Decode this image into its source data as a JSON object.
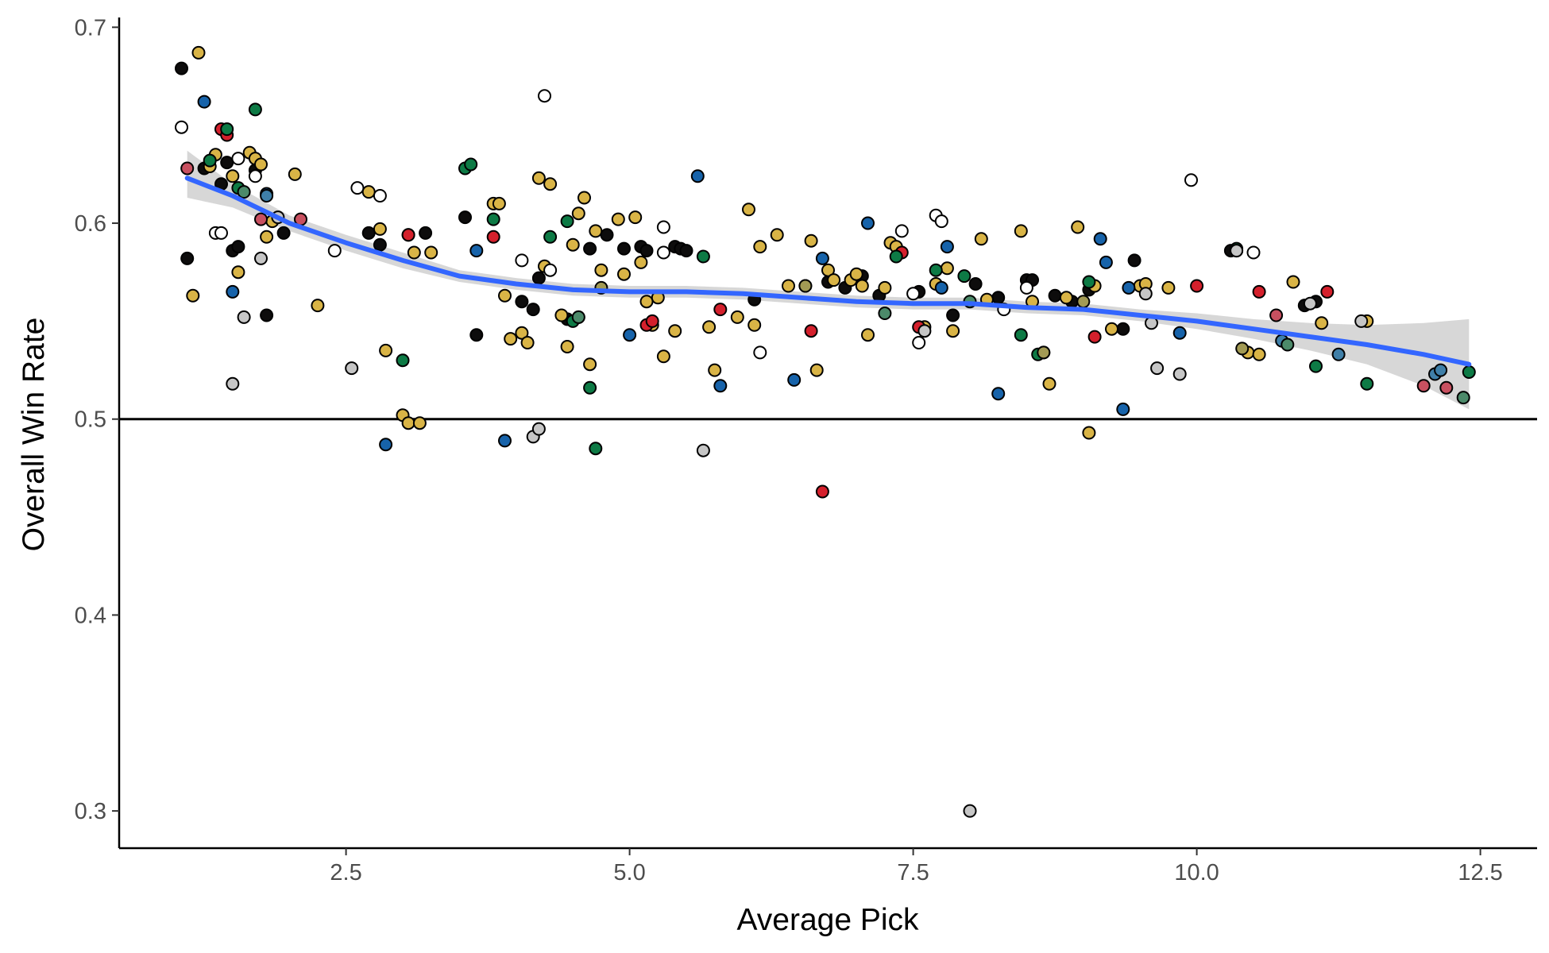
{
  "chart_data": {
    "type": "scatter",
    "title": "",
    "xlabel": "Average Pick",
    "ylabel": "Overall Win Rate",
    "xlim": [
      0.5,
      13.0
    ],
    "ylim": [
      0.281,
      0.705
    ],
    "x_ticks": [
      2.5,
      5.0,
      7.5,
      10.0,
      12.5
    ],
    "x_tick_labels": [
      "2.5",
      "5.0",
      "7.5",
      "10.0",
      "12.5"
    ],
    "y_ticks": [
      0.3,
      0.4,
      0.5,
      0.6,
      0.7
    ],
    "y_tick_labels": [
      "0.3",
      "0.4",
      "0.5",
      "0.6",
      "0.7"
    ],
    "grid": false,
    "legend": "none",
    "reference_line": {
      "y": 0.5,
      "color": "#000000"
    },
    "colors": {
      "smooth": "#3366FF",
      "band": "#C9C9C9",
      "point_outline": "#000000",
      "palette": {
        "black": "#0d0c0c",
        "gold": "#d9b446",
        "red": "#d4202c",
        "green": "#0d7a45",
        "blue": "#1763aa",
        "white": "#ffffff",
        "gray": "#c6c6c6",
        "rose": "#c85060",
        "steel": "#3f7fa8",
        "sage": "#4c8a6a",
        "olive": "#a29a54"
      }
    },
    "smooth_line": {
      "x": [
        1.1,
        1.5,
        2.0,
        2.5,
        3.0,
        3.5,
        4.0,
        4.5,
        5.0,
        5.5,
        6.0,
        6.5,
        7.0,
        7.5,
        8.0,
        8.5,
        9.0,
        9.5,
        10.0,
        10.5,
        11.0,
        11.5,
        12.0,
        12.4
      ],
      "y": [
        0.623,
        0.614,
        0.6,
        0.59,
        0.581,
        0.573,
        0.569,
        0.566,
        0.565,
        0.565,
        0.564,
        0.562,
        0.56,
        0.559,
        0.559,
        0.557,
        0.556,
        0.553,
        0.55,
        0.546,
        0.542,
        0.538,
        0.533,
        0.528
      ],
      "lower": [
        0.613,
        0.608,
        0.596,
        0.586,
        0.577,
        0.57,
        0.566,
        0.563,
        0.562,
        0.562,
        0.561,
        0.559,
        0.557,
        0.556,
        0.556,
        0.554,
        0.553,
        0.55,
        0.546,
        0.541,
        0.535,
        0.528,
        0.517,
        0.505
      ],
      "upper": [
        0.637,
        0.62,
        0.604,
        0.594,
        0.585,
        0.576,
        0.572,
        0.569,
        0.568,
        0.568,
        0.567,
        0.565,
        0.563,
        0.562,
        0.562,
        0.56,
        0.559,
        0.556,
        0.554,
        0.551,
        0.549,
        0.548,
        0.549,
        0.551
      ]
    },
    "series": [
      {
        "x": [
          1.05,
          1.1,
          1.25,
          1.4,
          1.45,
          1.5,
          1.55,
          1.7,
          1.8,
          1.95,
          2.7,
          2.8,
          3.05,
          3.2,
          3.55,
          3.65,
          4.05,
          4.15,
          4.2,
          4.45,
          4.55,
          4.65,
          4.8,
          4.95,
          5.1,
          5.15,
          5.4,
          5.45,
          5.5,
          6.1,
          6.55,
          6.75,
          6.9,
          7.05,
          7.2,
          7.55,
          7.85,
          8.05,
          8.25,
          8.5,
          8.55,
          8.75,
          8.9,
          9.05,
          9.35,
          9.45,
          10.3,
          10.35,
          10.95,
          11.05
        ],
        "y": [
          0.679,
          0.582,
          0.628,
          0.62,
          0.631,
          0.586,
          0.588,
          0.627,
          0.553,
          0.595,
          0.595,
          0.589,
          0.594,
          0.595,
          0.603,
          0.543,
          0.56,
          0.556,
          0.572,
          0.551,
          0.552,
          0.587,
          0.594,
          0.587,
          0.588,
          0.586,
          0.588,
          0.587,
          0.586,
          0.561,
          0.568,
          0.57,
          0.567,
          0.573,
          0.563,
          0.565,
          0.553,
          0.569,
          0.562,
          0.571,
          0.571,
          0.563,
          0.56,
          0.566,
          0.546,
          0.581,
          0.586,
          0.586,
          0.558,
          0.56
        ],
        "color": "black"
      },
      {
        "x": [
          1.15,
          1.2,
          1.3,
          1.35,
          1.5,
          1.55,
          1.65,
          1.7,
          1.75,
          1.8,
          1.85,
          2.05,
          2.25,
          2.7,
          2.8,
          2.85,
          3.0,
          3.05,
          3.1,
          3.15,
          3.25,
          3.8,
          3.85,
          3.9,
          3.95,
          4.05,
          4.1,
          4.2,
          4.25,
          4.3,
          4.4,
          4.45,
          4.5,
          4.55,
          4.6,
          4.65,
          4.7,
          4.75,
          4.9,
          4.95,
          5.05,
          5.1,
          5.15,
          5.2,
          5.25,
          5.3,
          5.4,
          5.7,
          5.75,
          5.95,
          6.05,
          6.1,
          6.15,
          6.3,
          6.4,
          6.6,
          6.65,
          6.75,
          6.8,
          6.95,
          7.0,
          7.05,
          7.1,
          7.25,
          7.3,
          7.35,
          7.6,
          7.7,
          7.8,
          7.85,
          8.1,
          8.15,
          8.45,
          8.55,
          8.65,
          8.7,
          8.85,
          8.95,
          9.05,
          9.1,
          9.25,
          9.5,
          9.55,
          9.75,
          10.45,
          10.55,
          10.85,
          11.1,
          11.5
        ],
        "y": [
          0.563,
          0.687,
          0.629,
          0.635,
          0.624,
          0.575,
          0.636,
          0.633,
          0.63,
          0.593,
          0.601,
          0.625,
          0.558,
          0.616,
          0.597,
          0.535,
          0.502,
          0.498,
          0.585,
          0.498,
          0.585,
          0.61,
          0.61,
          0.563,
          0.541,
          0.544,
          0.539,
          0.623,
          0.578,
          0.62,
          0.553,
          0.537,
          0.589,
          0.605,
          0.613,
          0.528,
          0.596,
          0.576,
          0.602,
          0.574,
          0.603,
          0.58,
          0.56,
          0.548,
          0.562,
          0.532,
          0.545,
          0.547,
          0.525,
          0.552,
          0.607,
          0.548,
          0.588,
          0.594,
          0.568,
          0.591,
          0.525,
          0.576,
          0.571,
          0.571,
          0.574,
          0.568,
          0.543,
          0.567,
          0.59,
          0.588,
          0.547,
          0.569,
          0.577,
          0.545,
          0.592,
          0.561,
          0.596,
          0.56,
          0.534,
          0.518,
          0.562,
          0.598,
          0.493,
          0.568,
          0.546,
          0.568,
          0.569,
          0.567,
          0.534,
          0.533,
          0.57,
          0.549,
          0.55
        ],
        "color": "gold"
      },
      {
        "x": [
          1.4,
          1.45,
          3.05,
          3.8,
          5.15,
          5.2,
          5.8,
          6.6,
          6.7,
          7.4,
          7.55,
          9.1,
          10.0,
          10.55,
          11.15
        ],
        "y": [
          0.648,
          0.645,
          0.594,
          0.593,
          0.548,
          0.55,
          0.556,
          0.545,
          0.463,
          0.585,
          0.547,
          0.542,
          0.568,
          0.565,
          0.565
        ],
        "color": "red"
      },
      {
        "x": [
          1.3,
          1.45,
          1.55,
          1.7,
          3.0,
          3.55,
          3.6,
          3.8,
          4.3,
          4.45,
          4.5,
          4.65,
          4.7,
          5.65,
          7.35,
          7.7,
          7.95,
          8.45,
          8.6,
          9.05,
          10.35,
          11.05,
          11.5,
          12.4
        ],
        "y": [
          0.632,
          0.648,
          0.618,
          0.658,
          0.53,
          0.628,
          0.63,
          0.602,
          0.593,
          0.601,
          0.55,
          0.516,
          0.485,
          0.583,
          0.583,
          0.576,
          0.573,
          0.543,
          0.533,
          0.57,
          0.587,
          0.527,
          0.518,
          0.524
        ],
        "color": "green"
      },
      {
        "x": [
          1.25,
          1.5,
          1.8,
          2.85,
          3.65,
          3.9,
          5.0,
          5.6,
          5.8,
          6.45,
          6.7,
          7.1,
          7.75,
          7.8,
          8.25,
          9.15,
          9.2,
          9.35,
          9.4,
          9.85
        ],
        "y": [
          0.662,
          0.565,
          0.615,
          0.487,
          0.586,
          0.489,
          0.543,
          0.624,
          0.517,
          0.52,
          0.582,
          0.6,
          0.567,
          0.588,
          0.513,
          0.592,
          0.58,
          0.505,
          0.567,
          0.544
        ],
        "color": "blue"
      },
      {
        "x": [
          1.05,
          1.35,
          1.4,
          1.55,
          1.7,
          2.4,
          2.6,
          2.8,
          4.05,
          4.25,
          4.3,
          5.3,
          5.3,
          6.15,
          7.4,
          7.5,
          7.55,
          7.7,
          7.75,
          8.3,
          8.5,
          9.95,
          10.5
        ],
        "y": [
          0.649,
          0.595,
          0.595,
          0.633,
          0.624,
          0.586,
          0.618,
          0.614,
          0.581,
          0.665,
          0.576,
          0.598,
          0.585,
          0.534,
          0.596,
          0.564,
          0.539,
          0.604,
          0.601,
          0.556,
          0.567,
          0.622,
          0.585
        ],
        "color": "white"
      },
      {
        "x": [
          1.5,
          1.6,
          1.75,
          1.9,
          2.55,
          4.15,
          4.2,
          5.65,
          7.6,
          8.0,
          9.55,
          9.6,
          9.65,
          9.85,
          10.35,
          11.0,
          11.45
        ],
        "y": [
          0.518,
          0.552,
          0.582,
          0.603,
          0.526,
          0.491,
          0.495,
          0.484,
          0.545,
          0.3,
          0.564,
          0.549,
          0.526,
          0.523,
          0.586,
          0.559,
          0.55
        ],
        "color": "gray"
      },
      {
        "x": [
          1.1,
          1.75,
          2.1,
          10.7,
          12.0,
          12.2
        ],
        "y": [
          0.628,
          0.602,
          0.602,
          0.553,
          0.517,
          0.516
        ],
        "color": "rose"
      },
      {
        "x": [
          1.8,
          10.75,
          11.25,
          12.1,
          12.15
        ],
        "y": [
          0.614,
          0.54,
          0.533,
          0.523,
          0.525
        ],
        "color": "steel"
      },
      {
        "x": [
          1.6,
          4.55,
          7.25,
          8.0,
          10.8,
          12.35
        ],
        "y": [
          0.616,
          0.552,
          0.554,
          0.56,
          0.538,
          0.511
        ],
        "color": "sage"
      },
      {
        "x": [
          4.75,
          6.55,
          8.65,
          9.0,
          10.4
        ],
        "y": [
          0.567,
          0.568,
          0.534,
          0.56,
          0.536
        ],
        "color": "olive"
      }
    ]
  }
}
